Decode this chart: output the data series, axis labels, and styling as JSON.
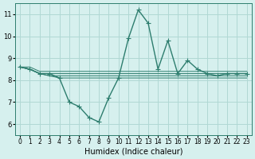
{
  "xlabel": "Humidex (Indice chaleur)",
  "x_values": [
    0,
    1,
    2,
    3,
    4,
    5,
    6,
    7,
    8,
    9,
    10,
    11,
    12,
    13,
    14,
    15,
    16,
    17,
    18,
    19,
    20,
    21,
    22,
    23
  ],
  "main_line": [
    8.6,
    8.5,
    8.3,
    8.3,
    8.1,
    7.0,
    6.8,
    6.3,
    6.1,
    7.2,
    8.1,
    9.9,
    11.2,
    10.6,
    8.5,
    9.8,
    8.3,
    8.9,
    8.5,
    8.3,
    8.2,
    8.3,
    8.3,
    8.3
  ],
  "flat_lines": [
    [
      8.6,
      8.6,
      8.4,
      8.4,
      8.4,
      8.4,
      8.4,
      8.4,
      8.4,
      8.4,
      8.4,
      8.4,
      8.4,
      8.4,
      8.4,
      8.4,
      8.4,
      8.4,
      8.4,
      8.4,
      8.4,
      8.4,
      8.4,
      8.4
    ],
    [
      8.6,
      8.5,
      8.3,
      8.3,
      8.3,
      8.3,
      8.3,
      8.3,
      8.3,
      8.3,
      8.3,
      8.3,
      8.3,
      8.3,
      8.3,
      8.3,
      8.3,
      8.3,
      8.3,
      8.3,
      8.3,
      8.3,
      8.3,
      8.3
    ],
    [
      8.6,
      8.5,
      8.3,
      8.2,
      8.2,
      8.2,
      8.2,
      8.2,
      8.2,
      8.2,
      8.2,
      8.2,
      8.2,
      8.2,
      8.2,
      8.2,
      8.2,
      8.2,
      8.2,
      8.2,
      8.2,
      8.2,
      8.2,
      8.2
    ],
    [
      8.6,
      8.5,
      8.3,
      8.2,
      8.1,
      8.1,
      8.1,
      8.1,
      8.1,
      8.1,
      8.1,
      8.1,
      8.1,
      8.1,
      8.1,
      8.1,
      8.1,
      8.1,
      8.1,
      8.1,
      8.1,
      8.1,
      8.1,
      8.1
    ]
  ],
  "line_color": "#2d7d6e",
  "bg_color": "#d6f0ee",
  "grid_color": "#b0d8d4",
  "ylim": [
    5.5,
    11.5
  ],
  "yticks": [
    6,
    7,
    8,
    9,
    10,
    11
  ],
  "xlim": [
    -0.5,
    23.5
  ]
}
